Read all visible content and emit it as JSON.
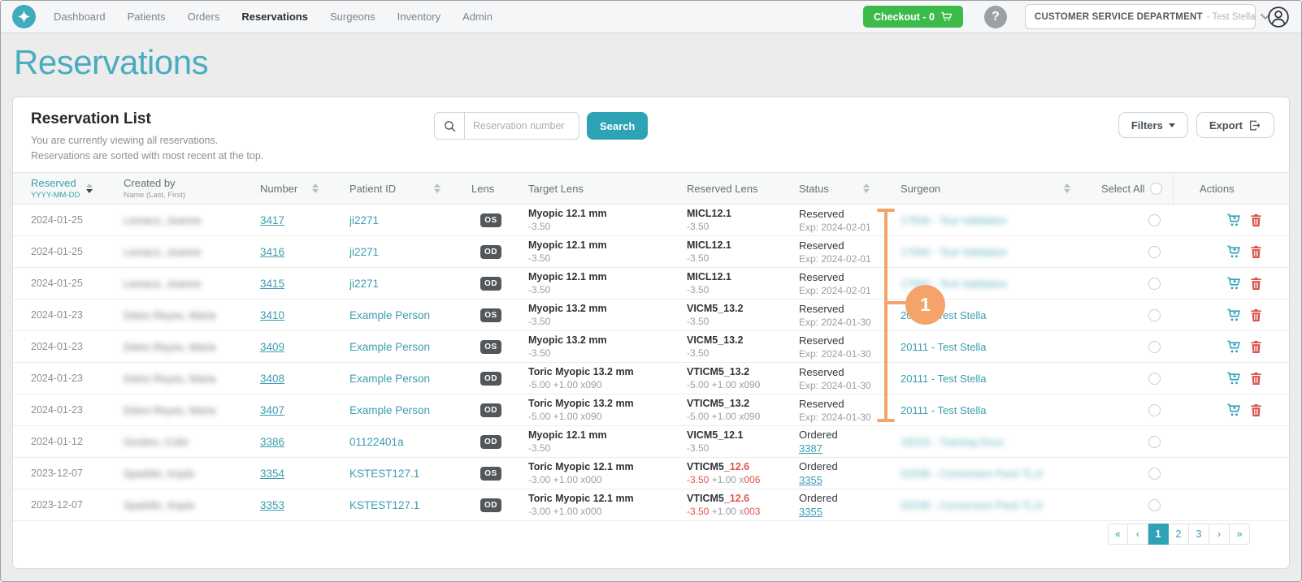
{
  "navbar": {
    "items": [
      "Dashboard",
      "Patients",
      "Orders",
      "Reservations",
      "Surgeons",
      "Inventory",
      "Admin"
    ],
    "active_item": "Reservations",
    "checkout_label": "Checkout - 0",
    "help_label": "?",
    "department": "CUSTOMER SERVICE DEPARTMENT",
    "department_user": "- Test Stella"
  },
  "page": {
    "title": "Reservations"
  },
  "panel": {
    "title": "Reservation List",
    "subtitle1": "You are currently viewing all reservations.",
    "subtitle2": "Reservations are sorted with most recent at the top.",
    "search_placeholder": "Reservation number",
    "search_button": "Search",
    "filters_button": "Filters",
    "export_button": "Export"
  },
  "table": {
    "headers": {
      "reserved": {
        "label": "Reserved",
        "sub": "YYYY-MM-DD"
      },
      "created": {
        "label": "Created by",
        "sub": "Name (Last, First)"
      },
      "number": "Number",
      "patient": "Patient ID",
      "lens": "Lens",
      "target": "Target Lens",
      "reserved_lens": "Reserved Lens",
      "status": "Status",
      "surgeon": "Surgeon",
      "select_all": "Select All",
      "actions": "Actions"
    },
    "rows": [
      {
        "reserved": "2024-01-25",
        "created_by": "Lemacs, Joanne",
        "created_by_blurred": true,
        "number": "3417",
        "patient_id": "ji2271",
        "lens": "OS",
        "target": {
          "name": "Myopic 12.1 mm",
          "rx": "-3.50"
        },
        "rlens_name": [
          {
            "t": "MICL12.1",
            "c": "dark"
          }
        ],
        "rlens_rx": [
          {
            "t": "-3.50",
            "c": "gray"
          }
        ],
        "status_label": "Reserved",
        "status_sub": "Exp: 2024-02-01",
        "status_sub_link": false,
        "surgeon": "17934 - Test Validation",
        "surgeon_blurred": true,
        "has_actions": true
      },
      {
        "reserved": "2024-01-25",
        "created_by": "Lemacs, Joanne",
        "created_by_blurred": true,
        "number": "3416",
        "patient_id": "ji2271",
        "lens": "OD",
        "target": {
          "name": "Myopic 12.1 mm",
          "rx": "-3.50"
        },
        "rlens_name": [
          {
            "t": "MICL12.1",
            "c": "dark"
          }
        ],
        "rlens_rx": [
          {
            "t": "-3.50",
            "c": "gray"
          }
        ],
        "status_label": "Reserved",
        "status_sub": "Exp: 2024-02-01",
        "status_sub_link": false,
        "surgeon": "17934 - Test Validation",
        "surgeon_blurred": true,
        "has_actions": true
      },
      {
        "reserved": "2024-01-25",
        "created_by": "Lemacs, Joanne",
        "created_by_blurred": true,
        "number": "3415",
        "patient_id": "ji2271",
        "lens": "OD",
        "target": {
          "name": "Myopic 12.1 mm",
          "rx": "-3.50"
        },
        "rlens_name": [
          {
            "t": "MICL12.1",
            "c": "dark"
          }
        ],
        "rlens_rx": [
          {
            "t": "-3.50",
            "c": "gray"
          }
        ],
        "status_label": "Reserved",
        "status_sub": "Exp: 2024-02-01",
        "status_sub_link": false,
        "surgeon": "17934 - Test Validation",
        "surgeon_blurred": true,
        "has_actions": true
      },
      {
        "reserved": "2024-01-23",
        "created_by": "Delos Reyes, Maria",
        "created_by_blurred": true,
        "number": "3410",
        "patient_id": "Example Person",
        "lens": "OS",
        "target": {
          "name": "Myopic 13.2 mm",
          "rx": "-3.50"
        },
        "rlens_name": [
          {
            "t": "VICM5_13.2",
            "c": "dark"
          }
        ],
        "rlens_rx": [
          {
            "t": "-3.50",
            "c": "gray"
          }
        ],
        "status_label": "Reserved",
        "status_sub": "Exp: 2024-01-30",
        "status_sub_link": false,
        "surgeon": "20111 - Test Stella",
        "surgeon_blurred": false,
        "has_actions": true
      },
      {
        "reserved": "2024-01-23",
        "created_by": "Delos Reyes, Maria",
        "created_by_blurred": true,
        "number": "3409",
        "patient_id": "Example Person",
        "lens": "OS",
        "target": {
          "name": "Myopic 13.2 mm",
          "rx": "-3.50"
        },
        "rlens_name": [
          {
            "t": "VICM5_13.2",
            "c": "dark"
          }
        ],
        "rlens_rx": [
          {
            "t": "-3.50",
            "c": "gray"
          }
        ],
        "status_label": "Reserved",
        "status_sub": "Exp: 2024-01-30",
        "status_sub_link": false,
        "surgeon": "20111 - Test Stella",
        "surgeon_blurred": false,
        "has_actions": true
      },
      {
        "reserved": "2024-01-23",
        "created_by": "Delos Reyes, Maria",
        "created_by_blurred": true,
        "number": "3408",
        "patient_id": "Example Person",
        "lens": "OD",
        "target": {
          "name": "Toric Myopic 13.2 mm",
          "rx": "-5.00 +1.00 x090"
        },
        "rlens_name": [
          {
            "t": "VTICM5_13.2",
            "c": "dark"
          }
        ],
        "rlens_rx": [
          {
            "t": "-5.00 +1.00 x090",
            "c": "gray"
          }
        ],
        "status_label": "Reserved",
        "status_sub": "Exp: 2024-01-30",
        "status_sub_link": false,
        "surgeon": "20111 - Test Stella",
        "surgeon_blurred": false,
        "has_actions": true
      },
      {
        "reserved": "2024-01-23",
        "created_by": "Delos Reyes, Maria",
        "created_by_blurred": true,
        "number": "3407",
        "patient_id": "Example Person",
        "lens": "OD",
        "target": {
          "name": "Toric Myopic 13.2 mm",
          "rx": "-5.00 +1.00 x090"
        },
        "rlens_name": [
          {
            "t": "VTICM5_13.2",
            "c": "dark"
          }
        ],
        "rlens_rx": [
          {
            "t": "-5.00 +1.00 x090",
            "c": "gray"
          }
        ],
        "status_label": "Reserved",
        "status_sub": "Exp: 2024-01-30",
        "status_sub_link": false,
        "surgeon": "20111 - Test Stella",
        "surgeon_blurred": false,
        "has_actions": true
      },
      {
        "reserved": "2024-01-12",
        "created_by": "Gordon, Colin",
        "created_by_blurred": true,
        "number": "3386",
        "patient_id": "01122401a",
        "lens": "OD",
        "target": {
          "name": "Myopic 12.1 mm",
          "rx": "-3.50"
        },
        "rlens_name": [
          {
            "t": "VICM5_12.1",
            "c": "dark"
          }
        ],
        "rlens_rx": [
          {
            "t": "-3.50",
            "c": "gray"
          }
        ],
        "status_label": "Ordered",
        "status_sub": "3387",
        "status_sub_link": true,
        "surgeon": "18223 - Training Docs",
        "surgeon_blurred": true,
        "has_actions": false
      },
      {
        "reserved": "2023-12-07",
        "created_by": "Sparklin, Kayla",
        "created_by_blurred": true,
        "number": "3354",
        "patient_id": "KSTEST127.1",
        "lens": "OS",
        "target": {
          "name": "Toric Myopic 12.1 mm",
          "rx": "-3.00 +1.00 x000"
        },
        "rlens_name": [
          {
            "t": "VTICM5_",
            "c": "dark"
          },
          {
            "t": "12.6",
            "c": "red"
          }
        ],
        "rlens_rx": [
          {
            "t": "-3.50",
            "c": "red"
          },
          {
            "t": " +1.00 x",
            "c": "gray"
          },
          {
            "t": "006",
            "c": "red"
          }
        ],
        "status_label": "Ordered",
        "status_sub": "3355",
        "status_sub_link": true,
        "surgeon": "52539 - Conversion Pack TLJr",
        "surgeon_blurred": true,
        "has_actions": false
      },
      {
        "reserved": "2023-12-07",
        "created_by": "Sparklin, Kayla",
        "created_by_blurred": true,
        "number": "3353",
        "patient_id": "KSTEST127.1",
        "lens": "OD",
        "target": {
          "name": "Toric Myopic 12.1 mm",
          "rx": "-3.00 +1.00 x000"
        },
        "rlens_name": [
          {
            "t": "VTICM5_",
            "c": "dark"
          },
          {
            "t": "12.6",
            "c": "red"
          }
        ],
        "rlens_rx": [
          {
            "t": "-3.50",
            "c": "red"
          },
          {
            "t": " +1.00 x",
            "c": "gray"
          },
          {
            "t": "003",
            "c": "red"
          }
        ],
        "status_label": "Ordered",
        "status_sub": "3355",
        "status_sub_link": true,
        "surgeon": "52539 - Conversion Pack TLJr",
        "surgeon_blurred": true,
        "has_actions": false
      }
    ]
  },
  "pagination": {
    "first": "«",
    "prev": "‹",
    "pages": [
      "1",
      "2",
      "3"
    ],
    "active_page": "1",
    "next": "›",
    "last": "»"
  },
  "annotation": {
    "label": "1",
    "color": "#f4a46b"
  },
  "colors": {
    "accent_teal": "#3d9db1",
    "title_teal": "#4aacbf",
    "button_teal": "#2fa3b6",
    "checkout_green": "#3cbb4b",
    "annotation_orange": "#f4a46b",
    "error_red": "#e2534b",
    "trash_red": "#d9534f",
    "lens_badge": "#53575c"
  }
}
